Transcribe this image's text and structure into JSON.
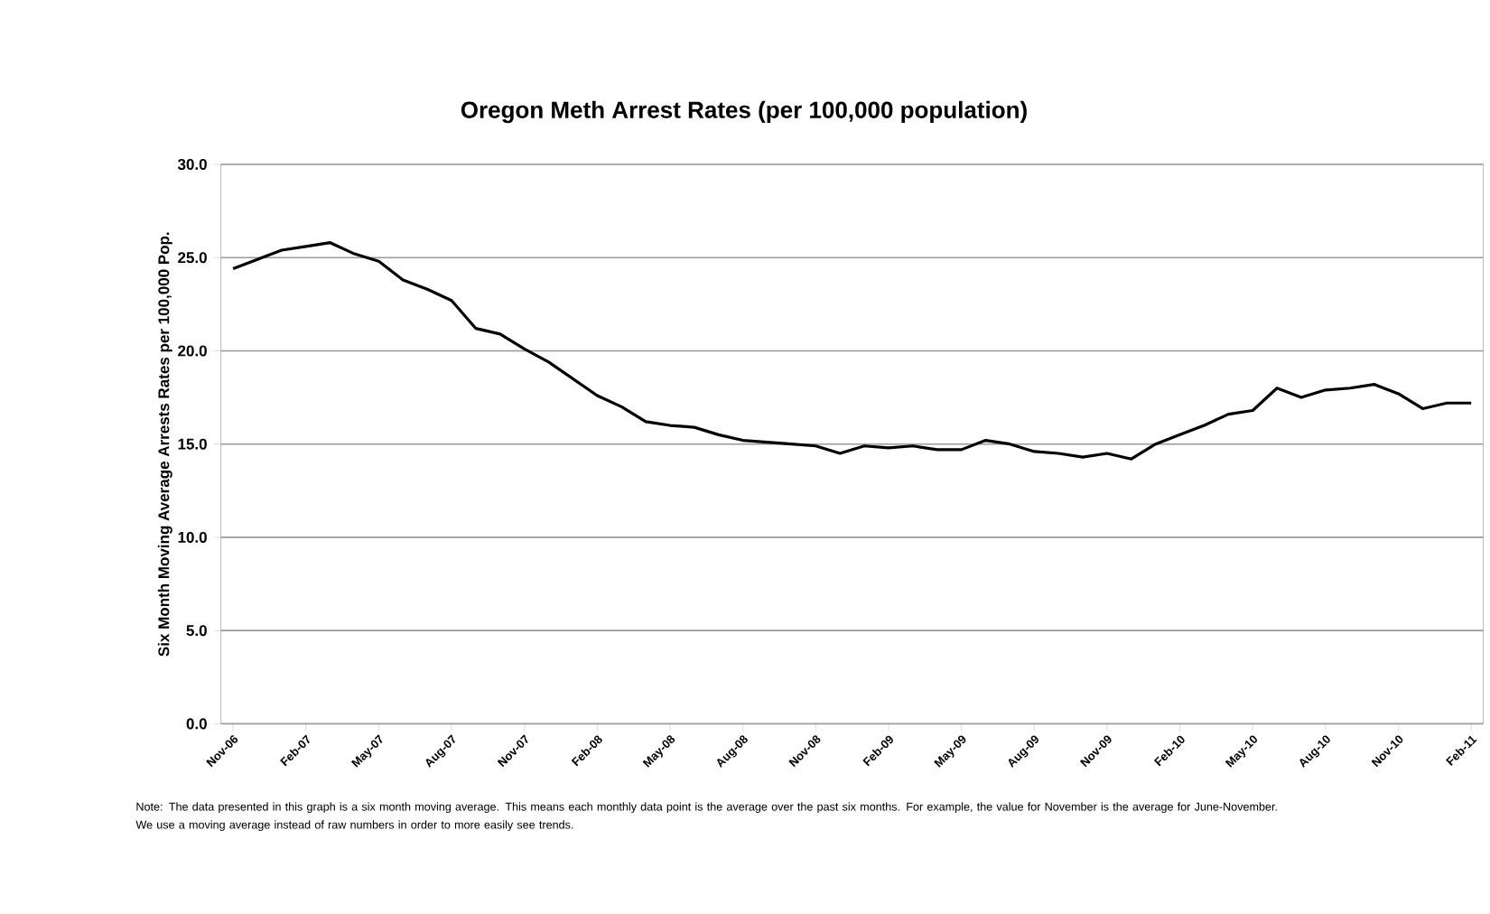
{
  "chart_data": {
    "type": "line",
    "title": "Oregon Meth Arrest Rates (per 100,000 population)",
    "ylabel": "Six Month Moving Average Arrests Rates per 100,000 Pop.",
    "categories": [
      "Nov-06",
      null,
      null,
      "Feb-07",
      null,
      null,
      "May-07",
      null,
      null,
      "Aug-07",
      null,
      null,
      "Nov-07",
      null,
      null,
      "Feb-08",
      null,
      null,
      "May-08",
      null,
      null,
      "Aug-08",
      null,
      null,
      "Nov-08",
      null,
      null,
      "Feb-09",
      null,
      null,
      "May-09",
      null,
      null,
      "Aug-09",
      null,
      null,
      "Nov-09",
      null,
      null,
      "Feb-10",
      null,
      null,
      "May-10",
      null,
      null,
      "Aug-10",
      null,
      null,
      "Nov-10",
      null,
      null,
      "Feb-11"
    ],
    "series": [
      {
        "color": "#000000",
        "values": [
          24.4,
          24.9,
          25.4,
          25.6,
          25.8,
          25.2,
          24.8,
          23.8,
          23.3,
          22.7,
          21.2,
          20.9,
          20.1,
          19.4,
          18.5,
          17.6,
          17.0,
          16.2,
          16.0,
          15.9,
          15.5,
          15.2,
          15.1,
          15.0,
          14.9,
          14.5,
          14.9,
          14.8,
          14.9,
          14.7,
          14.7,
          15.2,
          15.0,
          14.6,
          14.5,
          14.3,
          14.5,
          14.2,
          15.0,
          15.5,
          16.0,
          16.6,
          16.8,
          18.0,
          17.5,
          17.9,
          18.0,
          18.2,
          17.7,
          16.9,
          17.2,
          17.2
        ]
      }
    ],
    "ylim": [
      0,
      30
    ],
    "yticks": [
      {
        "value": 0,
        "label": "0.0"
      },
      {
        "value": 5,
        "label": "5.0"
      },
      {
        "value": 10,
        "label": "10.0"
      },
      {
        "value": 15,
        "label": "15.0"
      },
      {
        "value": 20,
        "label": "20.0"
      },
      {
        "value": 25,
        "label": "25.0"
      },
      {
        "value": 30,
        "label": "30.0"
      }
    ],
    "grid": "y",
    "marker": "none",
    "line_style": "solid",
    "annotations": [
      "Note: The data presented in this graph is a six month moving average. This means each monthly data point is the average over the past six months. For example, the value for November is the average for June-November. We use a moving average instead of raw numbers in order to more easily see trends."
    ]
  }
}
